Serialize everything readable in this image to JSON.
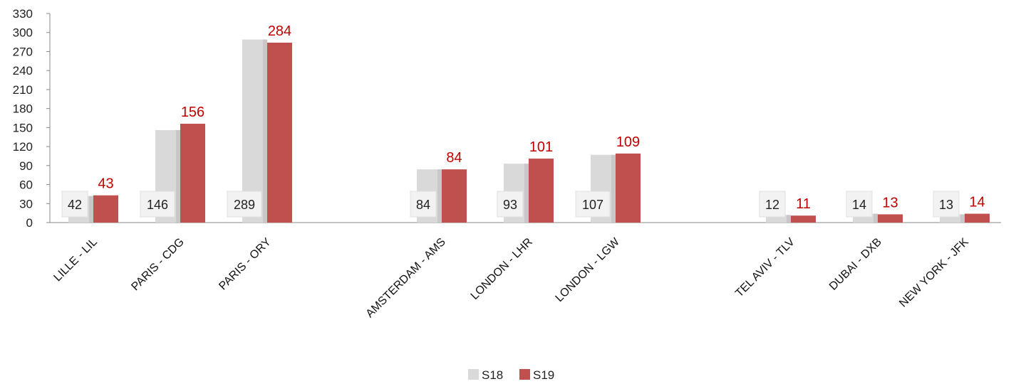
{
  "chart_data": {
    "type": "bar",
    "categories": [
      "LILLE - LIL",
      "PARIS - CDG",
      "PARIS - ORY",
      "AMSTERDAM - AMS",
      "LONDON - LHR",
      "LONDON - LGW",
      "TEL AVIV - TLV",
      "DUBAI - DXB",
      "NEW YORK - JFK"
    ],
    "series": [
      {
        "name": "S18",
        "color": "#d9d9d9",
        "values": [
          42,
          146,
          289,
          84,
          93,
          107,
          12,
          14,
          13
        ]
      },
      {
        "name": "S19",
        "color": "#c0504d",
        "values": [
          43,
          156,
          284,
          84,
          101,
          109,
          11,
          13,
          14
        ]
      }
    ],
    "ylim": [
      0,
      330
    ],
    "yticks": [
      0,
      30,
      60,
      90,
      120,
      150,
      180,
      210,
      240,
      270,
      300,
      330
    ],
    "legend_position": "bottom",
    "grid": false,
    "label_colors": {
      "S18": "#222222",
      "S19": "#c00000"
    }
  }
}
